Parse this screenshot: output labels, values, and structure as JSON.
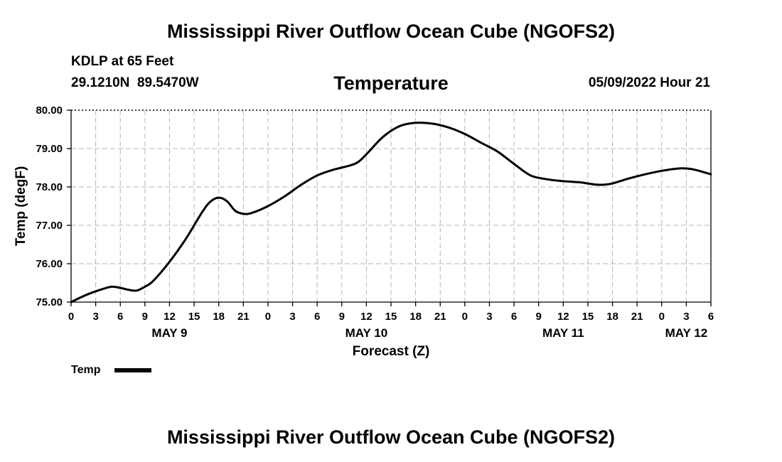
{
  "page_title": "Mississippi River Outflow Ocean Cube (NGOFS2)",
  "footer_title": "Mississippi River Outflow Ocean Cube (NGOFS2)",
  "station": {
    "name": "KDLP at 65 Feet",
    "coords": "29.1210N  89.5470W"
  },
  "forecast_time": "05/09/2022 Hour 21",
  "chart_data": {
    "type": "line",
    "title": "Temperature",
    "xlabel": "Forecast (Z)",
    "ylabel": "Temp (degF)",
    "ylim": [
      75.0,
      80.0
    ],
    "y_ticks": [
      "75.00",
      "76.00",
      "77.00",
      "78.00",
      "79.00",
      "80.00"
    ],
    "xlim": [
      0,
      78
    ],
    "x_tick_step_hours": 3,
    "x_tick_labels": [
      "0",
      "3",
      "6",
      "9",
      "12",
      "15",
      "18",
      "21",
      "0",
      "3",
      "6",
      "9",
      "12",
      "15",
      "18",
      "21",
      "0",
      "3",
      "6",
      "9",
      "12",
      "15",
      "18",
      "21",
      "0",
      "3",
      "6"
    ],
    "day_labels": [
      {
        "label": "MAY 9",
        "hour": 12
      },
      {
        "label": "MAY 10",
        "hour": 36
      },
      {
        "label": "MAY 11",
        "hour": 60
      },
      {
        "label": "MAY 12",
        "hour": 75
      }
    ],
    "grid": true,
    "legend": [
      {
        "label": "Temp",
        "position": "bottom-left"
      }
    ],
    "series": [
      {
        "name": "Temp",
        "x": [
          0,
          2,
          4,
          5,
          6,
          7,
          8,
          9,
          10,
          12,
          14,
          16,
          17,
          18,
          19,
          20,
          21,
          22,
          24,
          26,
          28,
          30,
          32,
          34,
          35,
          36,
          38,
          40,
          42,
          44,
          46,
          48,
          50,
          52,
          54,
          56,
          58,
          60,
          62,
          64,
          65,
          66,
          68,
          70,
          72,
          74,
          75,
          76,
          78
        ],
        "values": [
          75.0,
          75.2,
          75.35,
          75.4,
          75.37,
          75.32,
          75.3,
          75.4,
          75.55,
          76.05,
          76.65,
          77.35,
          77.62,
          77.72,
          77.63,
          77.38,
          77.3,
          77.32,
          77.5,
          77.75,
          78.05,
          78.3,
          78.45,
          78.56,
          78.65,
          78.85,
          79.3,
          79.58,
          79.67,
          79.65,
          79.55,
          79.38,
          79.15,
          78.92,
          78.6,
          78.3,
          78.2,
          78.15,
          78.12,
          78.06,
          78.06,
          78.09,
          78.22,
          78.33,
          78.42,
          78.48,
          78.48,
          78.45,
          78.33
        ]
      }
    ]
  }
}
